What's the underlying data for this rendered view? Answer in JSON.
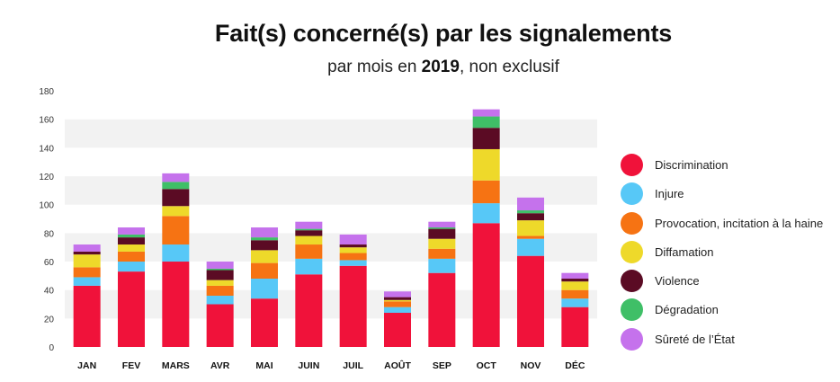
{
  "header": {
    "title": "Fait(s) concerné(s) par les signalements",
    "subtitle_prefix": "par mois en ",
    "subtitle_year": "2019",
    "subtitle_suffix": ", non exclusif"
  },
  "chart_data": {
    "type": "bar",
    "stacked": true,
    "title": "Fait(s) concerné(s) par les signalements",
    "subtitle": "par mois en 2019, non exclusif",
    "xlabel": "",
    "ylabel": "",
    "ylim": [
      0,
      180
    ],
    "yticks": [
      0,
      20,
      40,
      60,
      80,
      100,
      120,
      140,
      160,
      180
    ],
    "grid": "alternating horizontal bands",
    "legend_position": "right",
    "categories": [
      "JAN",
      "FEV",
      "MARS",
      "AVR",
      "MAI",
      "JUIN",
      "JUIL",
      "AOÛT",
      "SEP",
      "OCT",
      "NOV",
      "DÉC"
    ],
    "series": [
      {
        "name": "Discrimination",
        "color": "#f0123a",
        "values": [
          43,
          53,
          60,
          30,
          34,
          51,
          57,
          24,
          52,
          87,
          64,
          28
        ]
      },
      {
        "name": "Injure",
        "color": "#57c8f7",
        "values": [
          6,
          7,
          12,
          6,
          14,
          11,
          4,
          4,
          10,
          14,
          12,
          6
        ]
      },
      {
        "name": "Provocation, incitation à la haine",
        "color": "#f67313",
        "values": [
          7,
          7,
          20,
          7,
          11,
          10,
          5,
          4,
          7,
          16,
          2,
          6
        ]
      },
      {
        "name": "Diffamation",
        "color": "#eed92a",
        "values": [
          9,
          5,
          7,
          4,
          9,
          6,
          4,
          1,
          7,
          22,
          11,
          6
        ]
      },
      {
        "name": "Violence",
        "color": "#5b0b24",
        "values": [
          2,
          5,
          12,
          7,
          7,
          4,
          2,
          2,
          7,
          15,
          5,
          2
        ]
      },
      {
        "name": "Dégradation",
        "color": "#3fbf67",
        "values": [
          0,
          2,
          5,
          1,
          2,
          1,
          0,
          0,
          1,
          8,
          2,
          0
        ]
      },
      {
        "name": "Sûreté de l’État",
        "color": "#c572ec",
        "values": [
          5,
          5,
          6,
          5,
          7,
          5,
          7,
          4,
          4,
          5,
          9,
          4
        ]
      }
    ]
  }
}
